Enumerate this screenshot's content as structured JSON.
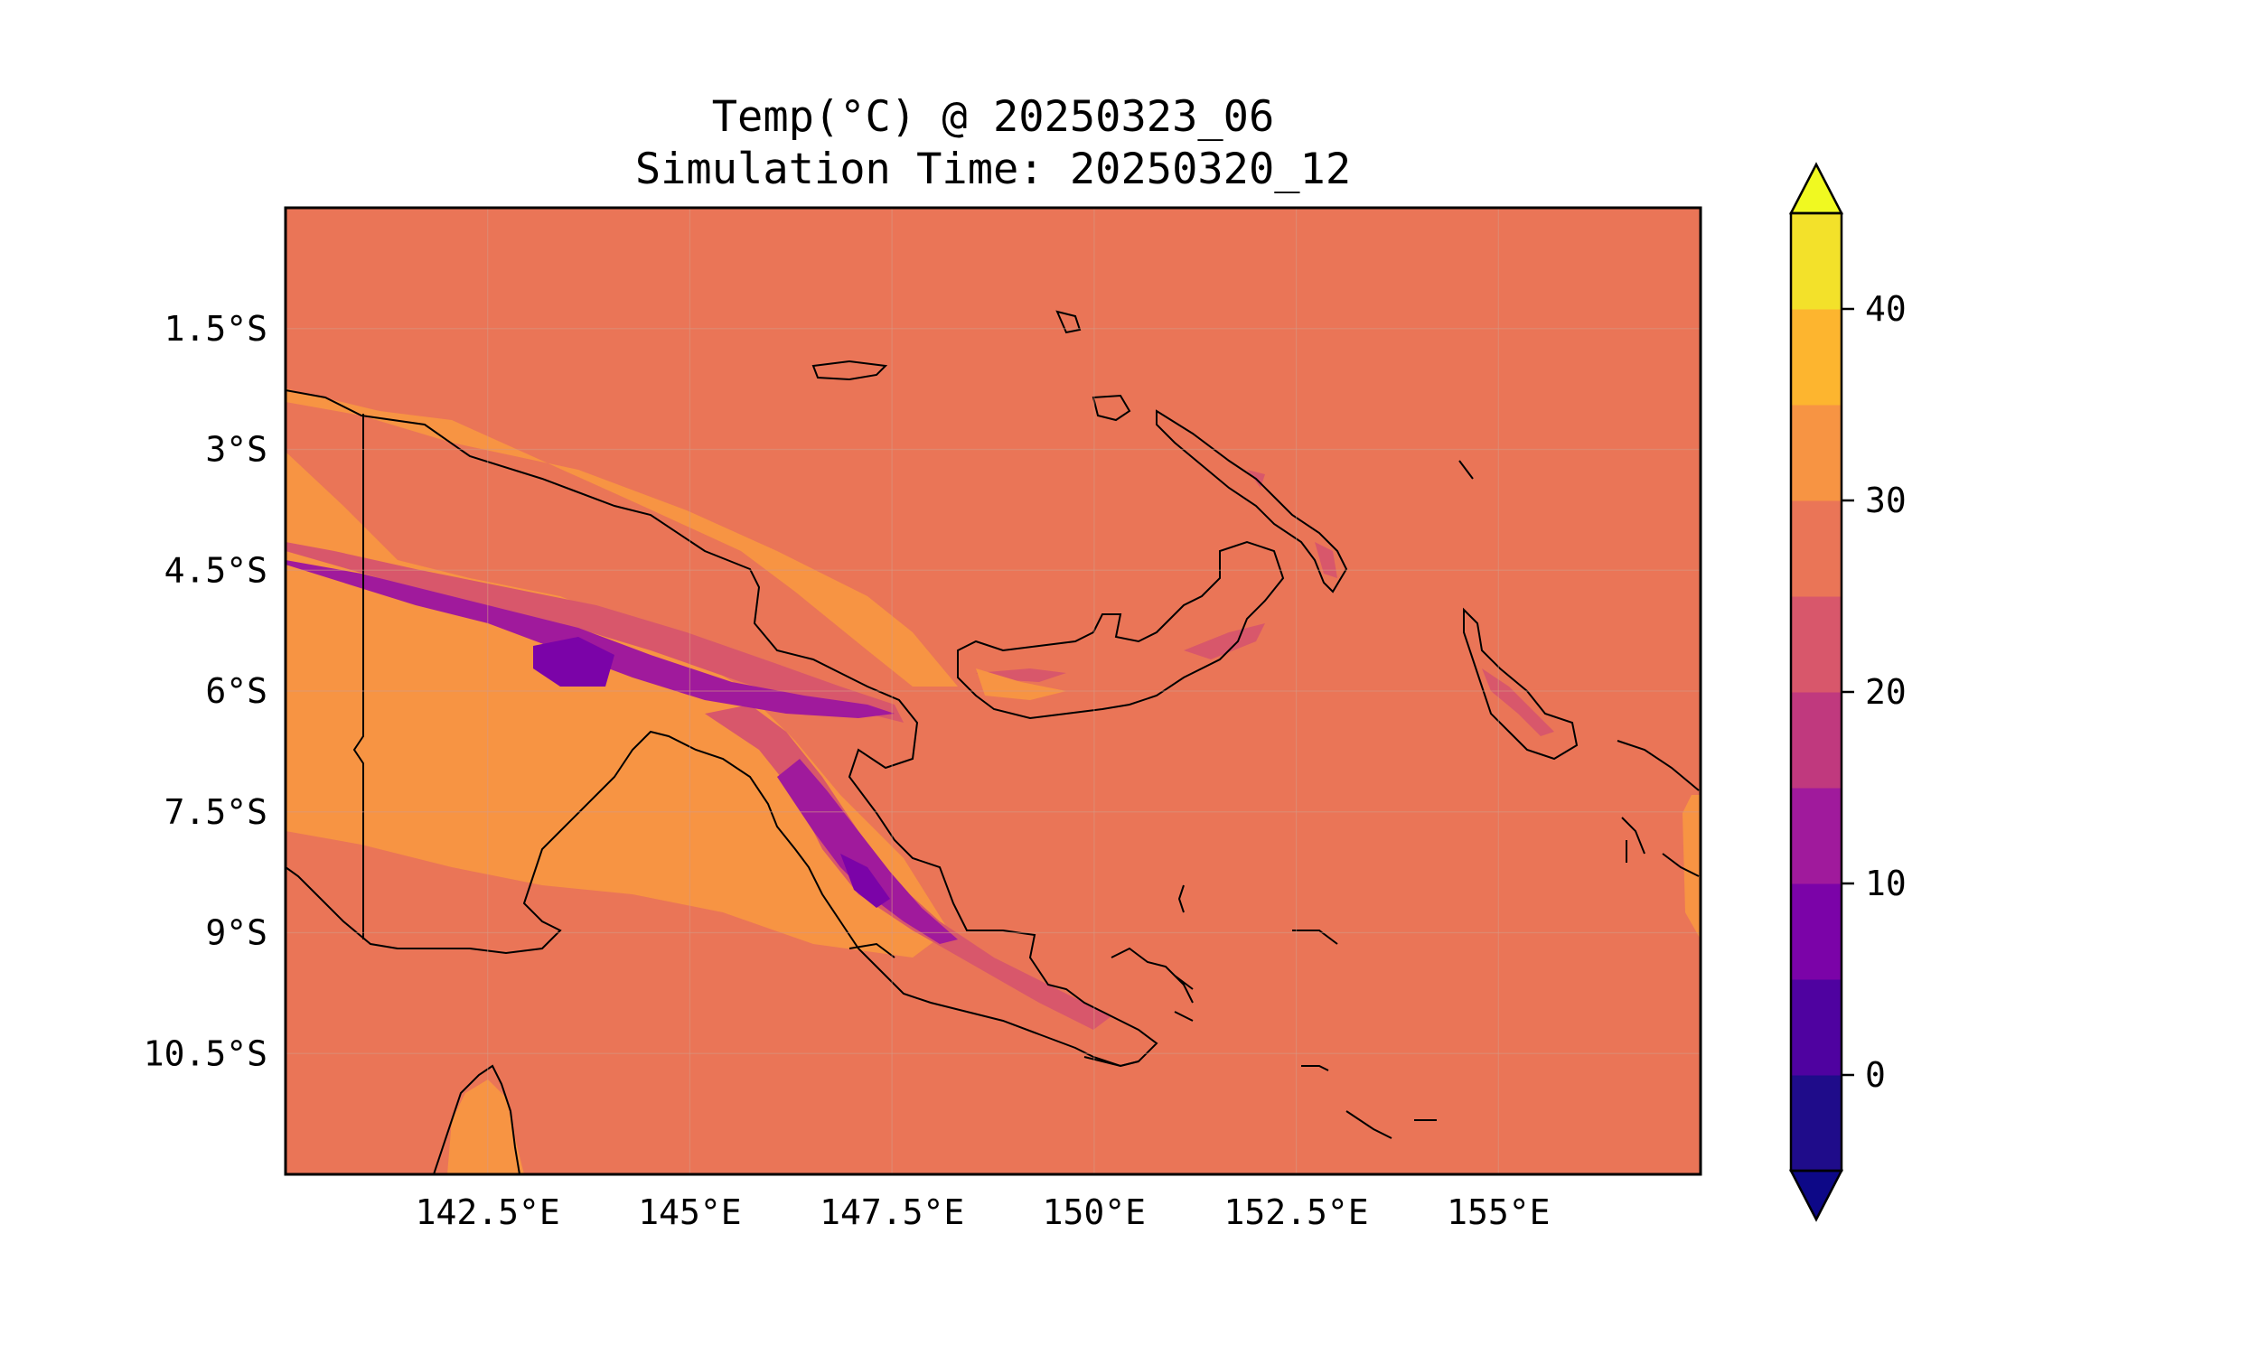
{
  "header": {
    "title": "Temp(°C) @ 20250323_06",
    "subtitle": "Simulation Time: 20250320_12"
  },
  "map": {
    "region": "Papua New Guinea",
    "lon_range": [
      140.0,
      157.5
    ],
    "lat_range": [
      -12.0,
      0.0
    ],
    "lon_ticks": [
      "142.5°E",
      "145°E",
      "147.5°E",
      "150°E",
      "152.5°E",
      "155°E"
    ],
    "lat_ticks": [
      "1.5°S",
      "3°S",
      "4.5°S",
      "6°S",
      "7.5°S",
      "9°S",
      "10.5°S"
    ],
    "background_color": "#ea7557",
    "coastline_color": "#000000",
    "grid": true
  },
  "colorbar": {
    "levels": [
      -5,
      0,
      5,
      10,
      15,
      20,
      25,
      30,
      35,
      40,
      45
    ],
    "colors": [
      "#1f0c8a",
      "#4f02a0",
      "#7b03a8",
      "#a01a9c",
      "#c0397e",
      "#d8576b",
      "#ea7557",
      "#f79443",
      "#fdb52f",
      "#f3e12a"
    ],
    "under_color": "#0d0887",
    "over_color": "#f0f921",
    "tick_labels": [
      "0",
      "10",
      "20",
      "30",
      "40"
    ],
    "extend": "both"
  }
}
